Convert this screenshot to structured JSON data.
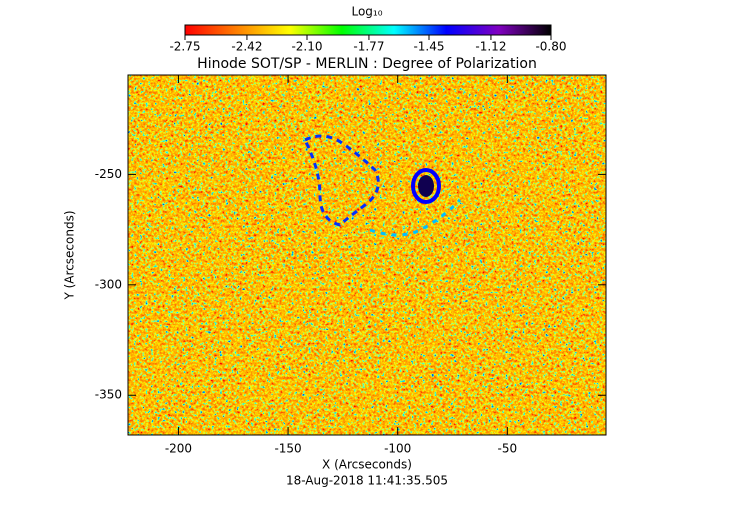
{
  "chart_data": {
    "type": "image",
    "title": "Hinode SOT/SP - MERLIN : Degree of Polarization",
    "x_label": "X (Arcseconds)",
    "y_label": "Y (Arcseconds)",
    "date": "18-Aug-2018 11:41:35.505",
    "xlim": [
      -223,
      -5
    ],
    "xticks": [
      -200,
      -150,
      -100,
      -50
    ],
    "ylim": [
      -368,
      -205
    ],
    "yticks": [
      -250,
      -300,
      -350
    ],
    "colorbar": {
      "label": "Log₁₀",
      "clim": [
        -2.75,
        -0.8
      ],
      "colors": [
        "#ff0000",
        "#ff8000",
        "#ffff00",
        "#00ff00",
        "#00ffff",
        "#0000ff",
        "#8000c0",
        "#000000"
      ],
      "ticks": [
        -2.75,
        -2.42,
        {
          "value": -2.1,
          "label": "-2.10"
        },
        -1.77,
        -1.45,
        -1.12,
        {
          "value": -0.8,
          "label": "-0.80"
        }
      ]
    }
  }
}
